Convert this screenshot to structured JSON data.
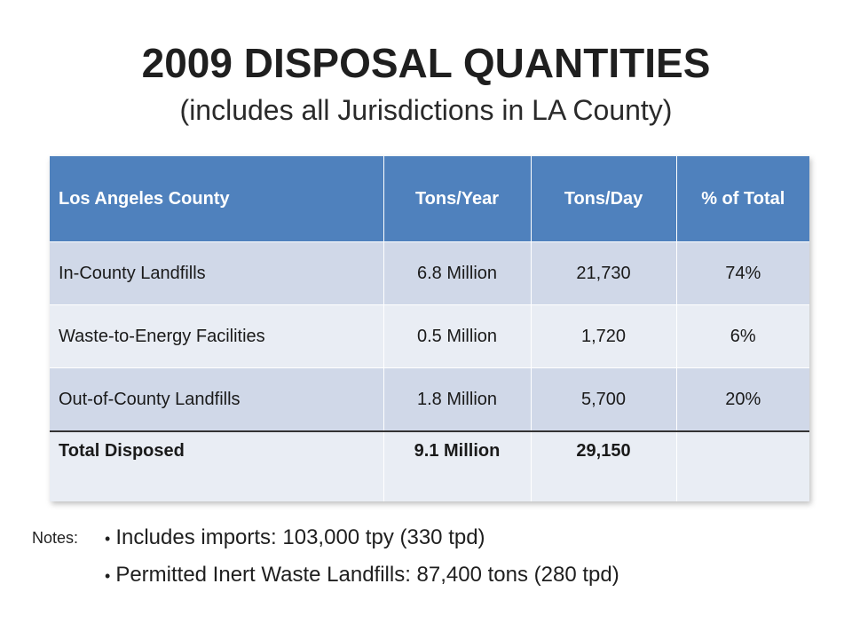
{
  "title": "2009 DISPOSAL QUANTITIES",
  "subtitle": "(includes all Jurisdictions in LA County)",
  "table": {
    "headers": [
      "Los  Angeles County",
      "Tons/Year",
      "Tons/Day",
      "% of Total"
    ],
    "rows": [
      [
        "In-County Landfills",
        "6.8 Million",
        "21,730",
        "74%"
      ],
      [
        "Waste-to-Energy Facilities",
        "0.5 Million",
        "1,720",
        "6%"
      ],
      [
        "Out-of-County Landfills",
        "1.8 Million",
        "5,700",
        "20%"
      ]
    ],
    "total": [
      "Total Disposed",
      "9.1 Million",
      "29,150",
      ""
    ]
  },
  "notes": {
    "label": "Notes:",
    "items": [
      "Includes imports:  103,000 tpy (330 tpd)",
      "Permitted Inert Waste Landfills:  87,400 tons (280 tpd)"
    ]
  },
  "colors": {
    "header_bg": "#4f81bd",
    "row_odd_bg": "#d0d8e8",
    "row_even_bg": "#e9edf4"
  }
}
